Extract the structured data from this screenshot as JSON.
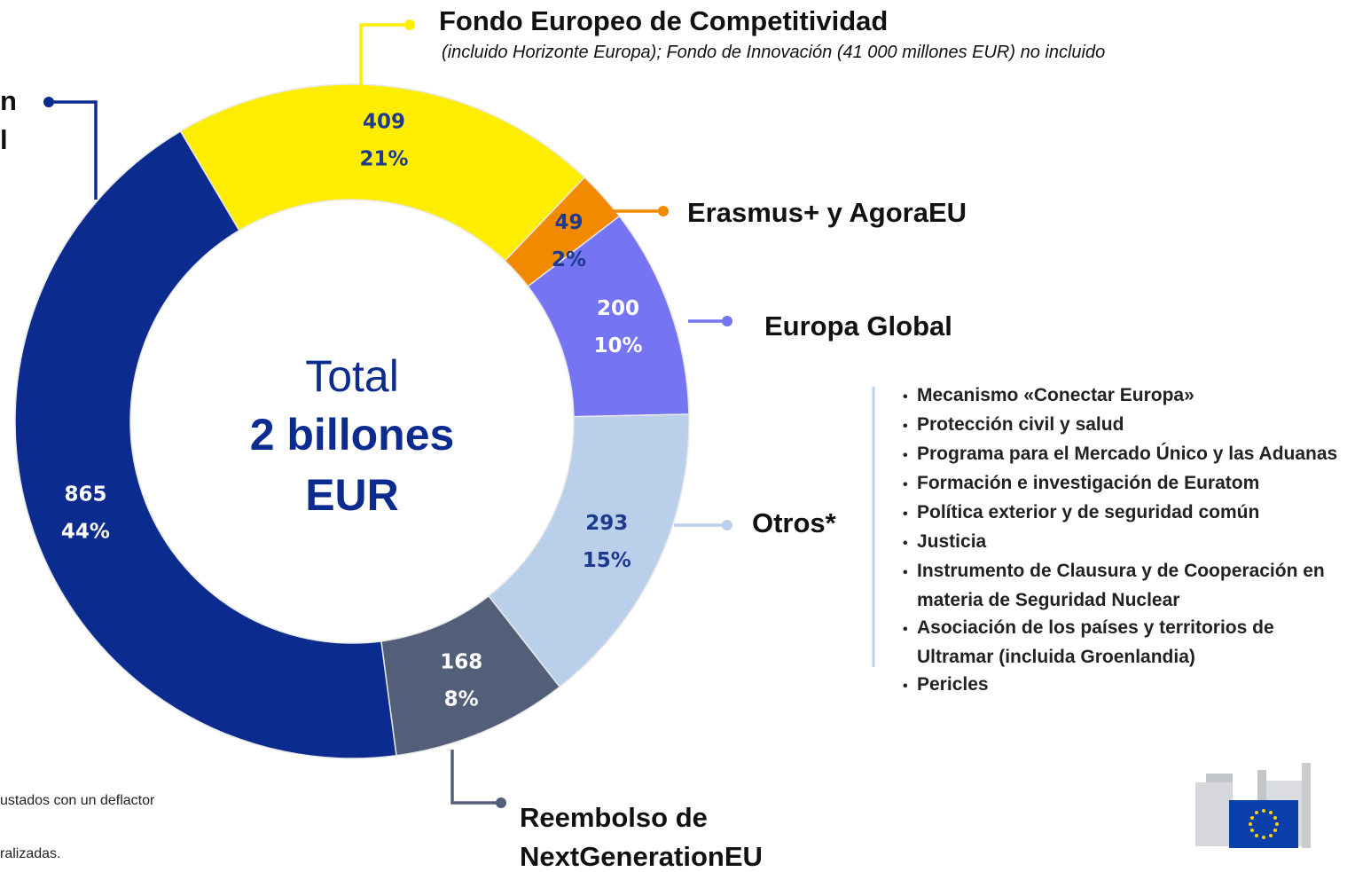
{
  "chart_data": {
    "type": "pie",
    "donut": true,
    "categories": [
      "Fondo Europeo de Competitividad",
      "Erasmus+ y AgoraEU",
      "Europa Global",
      "Otros*",
      "Reembolso de NextGenerationEU",
      null
    ],
    "values": [
      409,
      49,
      200,
      293,
      168,
      865
    ],
    "percent_labels": [
      "21%",
      "2%",
      "10%",
      "15%",
      "8%",
      "44%"
    ],
    "colors": [
      "#ffed00",
      "#f28a00",
      "#7575f4",
      "#bacfe9",
      "#535e78",
      "#0b2c8e"
    ],
    "value_label_colors": [
      "#1d3a8e",
      "#1d3a8e",
      "#ffffff",
      "#1d3a8e",
      "#ffffff",
      "#ffffff"
    ],
    "category_subtitle": "(incluido Horizonte Europa); Fondo de Innovación (41 000 millones EUR) no incluido",
    "center_label": [
      "Total",
      "2 billones",
      "EUR"
    ],
    "cropped_label_fragments": [
      "n",
      "l"
    ],
    "otros_items": [
      "Mecanismo «Conectar Europa»",
      "Protección civil y salud",
      "Programa para el Mercado Único y las Aduanas",
      "Formación e investigación de Euratom",
      "Política exterior y de seguridad común",
      "Justicia",
      "Instrumento de Clausura y de Cooperación en materia de Seguridad Nuclear",
      "Asociación de los países y territorios de Ultramar (incluida Groenlandia)",
      "Pericles"
    ],
    "footnote_fragments": [
      "ustados con un deflactor",
      "ralizadas."
    ]
  }
}
